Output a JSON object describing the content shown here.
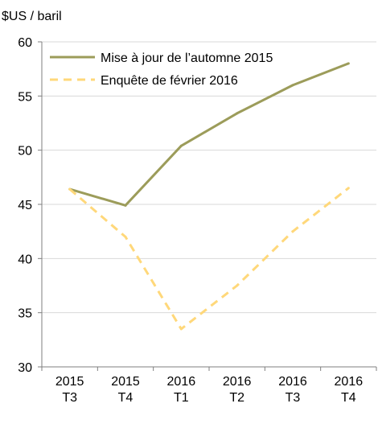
{
  "chart_data": {
    "type": "line",
    "ylabel": "$US / baril",
    "ylim": [
      30,
      60
    ],
    "yticks": [
      30,
      35,
      40,
      45,
      50,
      55,
      60
    ],
    "categories": [
      [
        "2015",
        "T3"
      ],
      [
        "2015",
        "T4"
      ],
      [
        "2016",
        "T1"
      ],
      [
        "2016",
        "T2"
      ],
      [
        "2016",
        "T3"
      ],
      [
        "2016",
        "T4"
      ]
    ],
    "grid": "horizontal",
    "legend_position": "top-left",
    "series": [
      {
        "name": "Mise à jour de l’automne 2015",
        "values": [
          46.4,
          44.9,
          50.4,
          53.4,
          56.0,
          58.0
        ],
        "color": "#9c9c5a",
        "style": "solid"
      },
      {
        "name": "Enquête de février 2016",
        "values": [
          46.4,
          42.0,
          33.5,
          37.5,
          42.5,
          46.5
        ],
        "color": "#ffd87a",
        "style": "dashed"
      }
    ]
  }
}
